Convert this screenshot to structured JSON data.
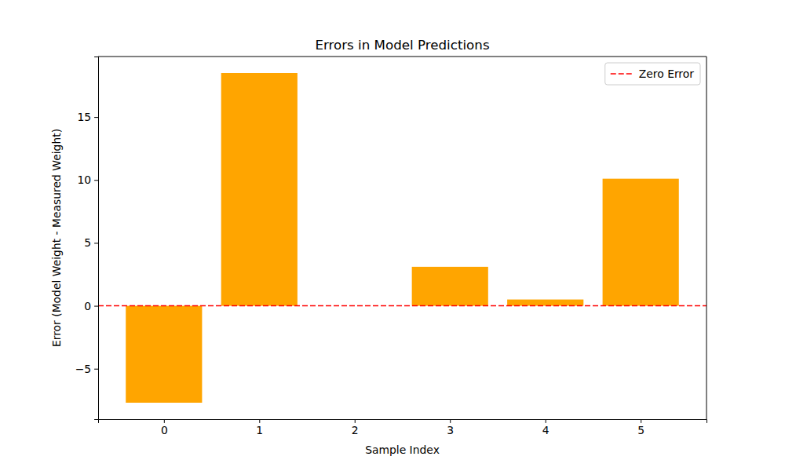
{
  "chart_data": {
    "type": "bar",
    "title": "Errors in Model Predictions",
    "x_label": "Sample Index",
    "y_label": "Error (Model Weight - Measured Weight)",
    "x": [
      0,
      1,
      2,
      3,
      4,
      5
    ],
    "values": [
      -7.7,
      18.5,
      0,
      3.1,
      0.5,
      10.1
    ],
    "color": "#ffa500",
    "xlim": [
      -0.69,
      5.69
    ],
    "xticks": [
      0,
      1,
      2,
      3,
      4,
      5
    ],
    "ylim": [
      -9.01,
      19.81
    ],
    "yticks": [
      {
        "value": -5,
        "label": "−5"
      },
      0,
      5,
      10,
      15
    ],
    "hlines": [
      {
        "y": 0,
        "label": "Zero Error",
        "color": "#ff0000",
        "line_style": "dashed"
      }
    ],
    "legend": "upper right",
    "grid": false
  }
}
